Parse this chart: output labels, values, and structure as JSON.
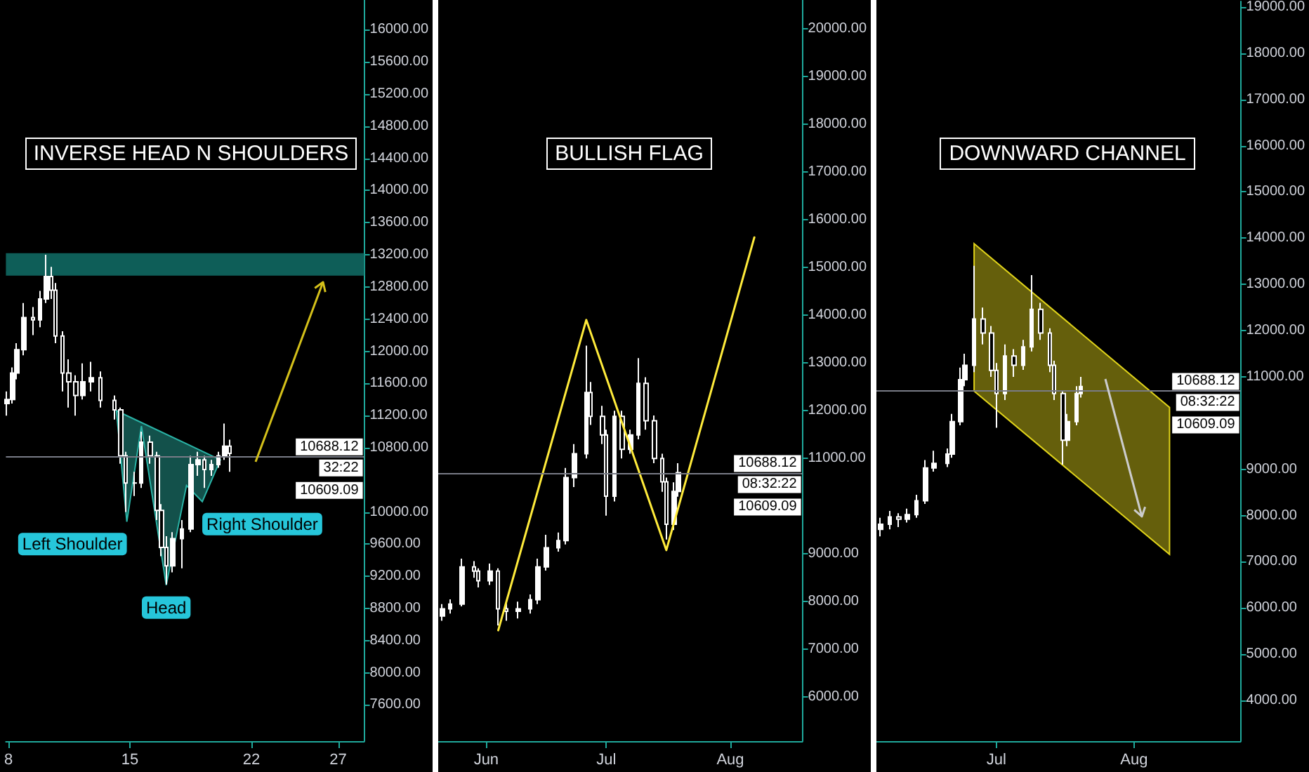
{
  "chart_data": [
    {
      "type": "candlestick",
      "title": "INVERSE HEAD N SHOULDERS",
      "xlim": [
        7.85,
        28.5
      ],
      "xticks": [
        8,
        15,
        22,
        27
      ],
      "ylim": [
        7150,
        16370
      ],
      "yticks": [
        {
          "value": 7600,
          "label": "7600.00"
        },
        {
          "value": 8000,
          "label": "8000.00"
        },
        {
          "value": 8400,
          "label": "8400.00"
        },
        {
          "value": 8800,
          "label": "8800.00"
        },
        {
          "value": 9200,
          "label": "9200.00"
        },
        {
          "value": 9600,
          "label": "9600.00"
        },
        {
          "value": 10000,
          "label": "10000.00"
        },
        {
          "value": 10800,
          "label": "10800.00"
        },
        {
          "value": 11200,
          "label": "11200.00"
        },
        {
          "value": 11600,
          "label": "11600.00"
        },
        {
          "value": 12000,
          "label": "12000.00"
        },
        {
          "value": 12400,
          "label": "12400.00"
        },
        {
          "value": 12800,
          "label": "12800.00"
        },
        {
          "value": 13200,
          "label": "13200.00"
        },
        {
          "value": 13600,
          "label": "13600.00"
        },
        {
          "value": 14000,
          "label": "14000.00"
        },
        {
          "value": 14400,
          "label": "14400.00"
        },
        {
          "value": 14800,
          "label": "14800.00"
        },
        {
          "value": 15200,
          "label": "15200.00"
        },
        {
          "value": 15600,
          "label": "15600.00"
        },
        {
          "value": 16000,
          "label": "16000.00"
        }
      ],
      "series": [
        {
          "type": "area",
          "color": "#2ab3a6",
          "x": [
            14.22,
            14.82,
            15.66,
            17.09,
            18.26,
            19.17,
            20.21
          ],
          "values": [
            11260,
            9880,
            11070,
            9090,
            10330,
            10130,
            10650
          ]
        },
        {
          "type": "candlestick",
          "color": "#ffffff",
          "x": [
            7.92,
            8.23,
            8.49,
            8.89,
            9.41,
            9.8,
            10.19,
            10.45,
            10.71,
            11.1,
            11.49,
            11.88,
            12.27,
            12.79,
            13.31,
            14.09,
            14.48,
            14.74,
            15.27,
            15.66,
            16.18,
            16.57,
            16.83,
            17.09,
            17.48,
            18.0,
            18.52,
            18.91,
            19.3,
            19.7,
            20.09,
            20.48,
            20.73
          ],
          "ohlc": [
            [
              11350,
              11500,
              11200,
              11400
            ],
            [
              11400,
              11800,
              11350,
              11730
            ],
            [
              11730,
              12100,
              11650,
              12020
            ],
            [
              12020,
              12600,
              11950,
              12420
            ],
            [
              12420,
              12550,
              12200,
              12390
            ],
            [
              12390,
              12750,
              12300,
              12650
            ],
            [
              12650,
              13200,
              12600,
              12930
            ],
            [
              12930,
              13050,
              12650,
              12760
            ],
            [
              12760,
              12850,
              12100,
              12190
            ],
            [
              12190,
              12250,
              11500,
              11730
            ],
            [
              11730,
              11900,
              11300,
              11620
            ],
            [
              11620,
              11700,
              11200,
              11450
            ],
            [
              11450,
              11850,
              11400,
              11620
            ],
            [
              11620,
              11870,
              11500,
              11670
            ],
            [
              11670,
              11750,
              11300,
              11390
            ],
            [
              11390,
              11450,
              11150,
              11270
            ],
            [
              11270,
              11300,
              10600,
              10700
            ],
            [
              10700,
              10750,
              10000,
              10360
            ],
            [
              10360,
              10500,
              10200,
              10360
            ],
            [
              10360,
              11000,
              10300,
              10870
            ],
            [
              10870,
              10950,
              10600,
              10700
            ],
            [
              10700,
              10750,
              9900,
              10020
            ],
            [
              10020,
              10100,
              9450,
              9560
            ],
            [
              9560,
              9700,
              9100,
              9330
            ],
            [
              9330,
              9750,
              9250,
              9670
            ],
            [
              9670,
              9900,
              9300,
              9790
            ],
            [
              9790,
              10700,
              9750,
              10590
            ],
            [
              10590,
              10750,
              10450,
              10650
            ],
            [
              10650,
              10700,
              10300,
              10530
            ],
            [
              10530,
              10650,
              10450,
              10590
            ],
            [
              10590,
              10750,
              10550,
              10700
            ],
            [
              10700,
              11100,
              10650,
              10820
            ],
            [
              10820,
              10900,
              10500,
              10730
            ]
          ]
        }
      ],
      "bands": [
        {
          "axis": "y",
          "from": 12940,
          "to": 13220,
          "color": "#0e5e58"
        }
      ],
      "ref_lines": [
        {
          "axis": "y",
          "value": 10688.12,
          "label": "10688.12",
          "color": "#787b86"
        }
      ],
      "annotations": [
        {
          "text": "Left Shoulder",
          "x": 14.82,
          "y": 9880
        },
        {
          "text": "Right Shoulder",
          "x": 19.17,
          "y": 10130
        },
        {
          "text": "Head",
          "x": 17.09,
          "y": 9090
        },
        "32:22",
        "10609.09"
      ]
    },
    {
      "type": "candlestick",
      "title": "BULLISH FLAG",
      "xlim": [
        "--05-20",
        "--08-19"
      ],
      "xticks": [
        {
          "value": "--06-01",
          "label": "Jun"
        },
        {
          "value": "--07-01",
          "label": "Jul"
        },
        {
          "value": "--08-01",
          "label": "Aug"
        }
      ],
      "ylim": [
        5080,
        20600
      ],
      "yticks": [
        {
          "value": 6000,
          "label": "6000.00"
        },
        {
          "value": 7000,
          "label": "7000.00"
        },
        {
          "value": 8000,
          "label": "8000.00"
        },
        {
          "value": 9000,
          "label": "9000.00"
        },
        {
          "value": 11000,
          "label": "11000.00"
        },
        {
          "value": 12000,
          "label": "12000.00"
        },
        {
          "value": 13000,
          "label": "13000.00"
        },
        {
          "value": 14000,
          "label": "14000.00"
        },
        {
          "value": 15000,
          "label": "15000.00"
        },
        {
          "value": 16000,
          "label": "16000.00"
        },
        {
          "value": 17000,
          "label": "17000.00"
        },
        {
          "value": 18000,
          "label": "18000.00"
        },
        {
          "value": 19000,
          "label": "19000.00"
        },
        {
          "value": 20000,
          "label": "20000.00"
        }
      ],
      "series": [
        {
          "type": "candlestick",
          "color": "#ffffff",
          "x": [
            "--05-21",
            "--05-23",
            "--05-26",
            "--05-29",
            "--05-30",
            "--06-02",
            "--06-04",
            "--06-06",
            "--06-09",
            "--06-12",
            "--06-14",
            "--06-16",
            "--06-19",
            "--06-21",
            "--06-23",
            "--06-26",
            "--06-27",
            "--06-30",
            "--07-01",
            "--07-03",
            "--07-05",
            "--07-07",
            "--07-09",
            "--07-11",
            "--07-13",
            "--07-15",
            "--07-16",
            "--07-18",
            "--07-19"
          ],
          "ohlc": [
            [
              7700,
              7950,
              7600,
              7850
            ],
            [
              7850,
              8050,
              7750,
              7950
            ],
            [
              7950,
              8900,
              7900,
              8730
            ],
            [
              8730,
              8850,
              8500,
              8640
            ],
            [
              8640,
              8700,
              8300,
              8440
            ],
            [
              8440,
              8800,
              8350,
              8640
            ],
            [
              8640,
              8700,
              7500,
              7850
            ],
            [
              7850,
              8000,
              7600,
              7800
            ],
            [
              7800,
              8000,
              7650,
              7850
            ],
            [
              7850,
              8150,
              7750,
              8040
            ],
            [
              8040,
              8900,
              7950,
              8730
            ],
            [
              8730,
              9400,
              8650,
              9130
            ],
            [
              9130,
              9450,
              9050,
              9280
            ],
            [
              9280,
              10800,
              9200,
              10600
            ],
            [
              10600,
              11300,
              10400,
              11100
            ],
            [
              11100,
              13360,
              11000,
              12380
            ],
            [
              12380,
              12600,
              11700,
              11880
            ],
            [
              11880,
              12100,
              11300,
              11490
            ],
            [
              11490,
              11600,
              9800,
              10210
            ],
            [
              10210,
              12000,
              10100,
              11880
            ],
            [
              11880,
              12000,
              11000,
              11190
            ],
            [
              11190,
              11600,
              11100,
              11490
            ],
            [
              11490,
              13100,
              11400,
              12570
            ],
            [
              12570,
              12700,
              11600,
              11790
            ],
            [
              11790,
              11900,
              10900,
              11000
            ],
            [
              11000,
              11100,
              10300,
              10510
            ],
            [
              10510,
              10600,
              9300,
              9620
            ],
            [
              9620,
              10500,
              9500,
              10310
            ],
            [
              10310,
              10900,
              10200,
              10700
            ]
          ]
        },
        {
          "type": "line",
          "color": "#ffeb3b",
          "marker": "none",
          "x": [
            "--06-04",
            "--06-26",
            "--07-16",
            "--08-07"
          ],
          "values": [
            7400,
            13900,
            9080,
            15630
          ]
        }
      ],
      "ref_lines": [
        {
          "axis": "y",
          "value": 10688.12,
          "label": "10688.12",
          "color": "#787b86"
        }
      ],
      "annotations": [
        "08:32:22",
        "10609.09"
      ]
    },
    {
      "type": "candlestick",
      "title": "DOWNWARD CHANNEL",
      "xlim": [
        "--06-04",
        "--08-25"
      ],
      "xticks": [
        {
          "value": "--07-01",
          "label": "Jul"
        },
        {
          "value": "--08-01",
          "label": "Aug"
        }
      ],
      "ylim": [
        3120,
        19120
      ],
      "yticks": [
        {
          "value": 4000,
          "label": "4000.00"
        },
        {
          "value": 5000,
          "label": "5000.00"
        },
        {
          "value": 6000,
          "label": "6000.00"
        },
        {
          "value": 7000,
          "label": "7000.00"
        },
        {
          "value": 8000,
          "label": "8000.00"
        },
        {
          "value": 9000,
          "label": "9000.00"
        },
        {
          "value": 11000,
          "label": "11000.00"
        },
        {
          "value": 12000,
          "label": "12000.00"
        },
        {
          "value": 13000,
          "label": "13000.00"
        },
        {
          "value": 14000,
          "label": "14000.00"
        },
        {
          "value": 15000,
          "label": "15000.00"
        },
        {
          "value": 16000,
          "label": "16000.00"
        },
        {
          "value": 17000,
          "label": "17000.00"
        },
        {
          "value": 18000,
          "label": "18000.00"
        },
        {
          "value": 19000,
          "label": "19000.00"
        }
      ],
      "series": [
        {
          "type": "area",
          "color": "#e0d31a",
          "x": [
            "--06-26",
            "--08-09",
            "--08-09",
            "--06-26"
          ],
          "values": [
            13880,
            10340,
            7160,
            10690
          ]
        },
        {
          "type": "candlestick",
          "color": "#ffffff",
          "x": [
            "--06-05",
            "--06-07",
            "--06-09",
            "--06-11",
            "--06-13",
            "--06-15",
            "--06-17",
            "--06-20",
            "--06-21",
            "--06-23",
            "--06-24",
            "--06-26",
            "--06-28",
            "--06-30",
            "--07-01",
            "--07-03",
            "--07-05",
            "--07-07",
            "--07-09",
            "--07-11",
            "--07-13",
            "--07-14",
            "--07-16",
            "--07-17",
            "--07-19",
            "--07-20"
          ],
          "ohlc": [
            [
              7700,
              7950,
              7550,
              7810
            ],
            [
              7810,
              8100,
              7700,
              7970
            ],
            [
              7970,
              8050,
              7750,
              7920
            ],
            [
              7920,
              8150,
              7850,
              8020
            ],
            [
              8020,
              8450,
              7950,
              8320
            ],
            [
              8320,
              9200,
              8250,
              9030
            ],
            [
              9030,
              9400,
              8950,
              9130
            ],
            [
              9130,
              9450,
              9050,
              9330
            ],
            [
              9330,
              10200,
              9250,
              10030
            ],
            [
              10030,
              11200,
              9950,
              10940
            ],
            [
              10940,
              11500,
              10800,
              11250
            ],
            [
              11250,
              13400,
              11100,
              12250
            ],
            [
              12250,
              12500,
              11700,
              11950
            ],
            [
              11950,
              12100,
              11000,
              11140
            ],
            [
              11140,
              11300,
              9900,
              10640
            ],
            [
              10640,
              11700,
              10500,
              11450
            ],
            [
              11450,
              11600,
              11000,
              11250
            ],
            [
              11250,
              11800,
              11150,
              11650
            ],
            [
              11650,
              13200,
              11550,
              12460
            ],
            [
              12460,
              12600,
              11800,
              11950
            ],
            [
              11950,
              12050,
              11100,
              11250
            ],
            [
              11250,
              11350,
              10500,
              10640
            ],
            [
              10640,
              10700,
              9100,
              9630
            ],
            [
              9630,
              10200,
              9500,
              10030
            ],
            [
              10030,
              10800,
              9950,
              10640
            ],
            [
              10640,
              11000,
              10550,
              10790
            ]
          ]
        }
      ],
      "ref_lines": [
        {
          "axis": "y",
          "value": 10688.12,
          "label": "10688.12",
          "color": "#787b86"
        }
      ],
      "annotations": [
        "08:32:22",
        "10609.09"
      ]
    }
  ]
}
